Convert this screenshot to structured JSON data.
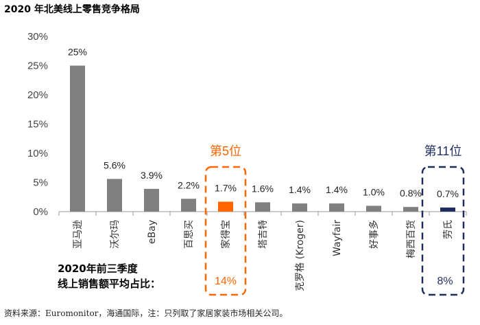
{
  "chart_data": {
    "type": "bar",
    "title": "2020 年北美线上零售竞争格局",
    "categories": [
      "亚马逊",
      "沃尔玛",
      "eBay",
      "百思买",
      "家得宝",
      "塔吉特",
      "克罗格 (Kroger)",
      "Wayfair",
      "好事多",
      "梅西百货",
      "劳氏"
    ],
    "values": [
      25,
      5.6,
      3.9,
      2.2,
      1.7,
      1.6,
      1.4,
      1.4,
      1.0,
      0.8,
      0.7
    ],
    "value_labels": [
      "25%",
      "5.6%",
      "3.9%",
      "2.2%",
      "1.7%",
      "1.6%",
      "1.4%",
      "1.4%",
      "1.0%",
      "0.8%",
      "0.7%"
    ],
    "yticks": [
      "0%",
      "5%",
      "10%",
      "15%",
      "20%",
      "25%",
      "30%"
    ],
    "ylim": [
      0,
      30
    ],
    "xlabel": "",
    "ylabel": "",
    "grid": false,
    "colors": {
      "default": "#808080",
      "home_depot": "#ff6600",
      "lowes": "#1f2d5c"
    },
    "highlights": [
      {
        "category": "家得宝",
        "rank_label": "第5位",
        "share_value": "14%",
        "color": "#ff6600"
      },
      {
        "category": "劳氏",
        "rank_label": "第11位",
        "share_value": "8%",
        "color": "#1f2d5c"
      }
    ]
  },
  "side_label": {
    "line1": "2020年前三季度",
    "line2": "线上销售额平均占比："
  },
  "footnote": "资料来源：Euromonitor，海通国际，注：只列取了家居家装市场相关公司。"
}
